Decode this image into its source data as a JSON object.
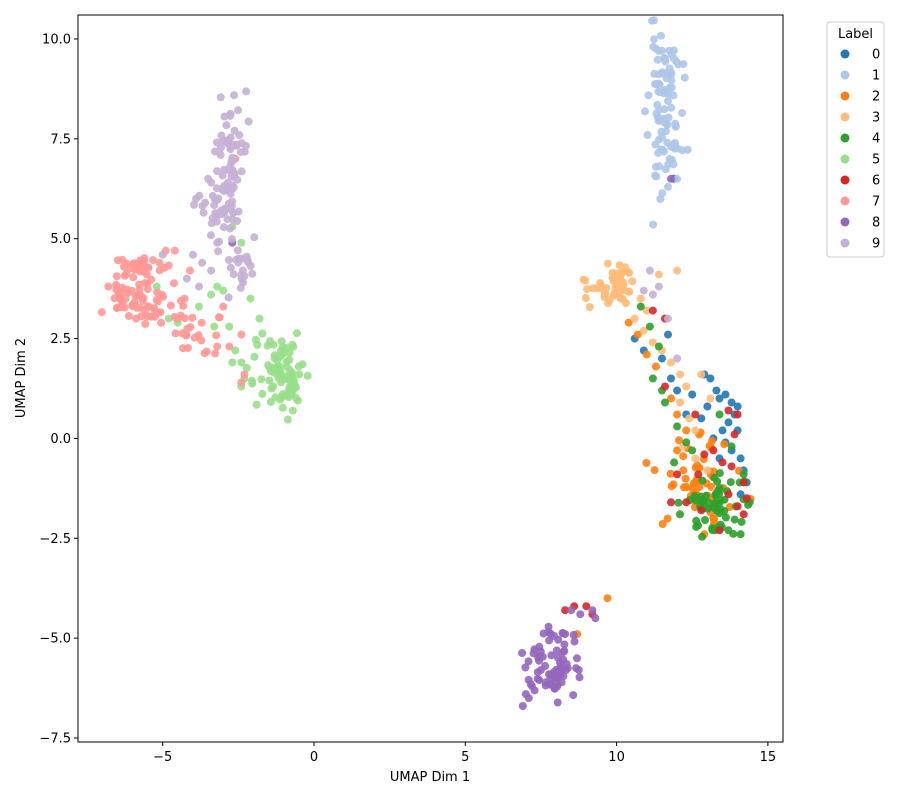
{
  "chart_data": {
    "type": "scatter",
    "title": "",
    "xlabel": "UMAP Dim 1",
    "ylabel": "UMAP Dim 2",
    "xlim": [
      -7.8,
      15.5
    ],
    "ylim": [
      -7.6,
      10.6
    ],
    "xticks": [
      -5,
      0,
      5,
      10,
      15
    ],
    "xtick_labels": [
      "−5",
      "0",
      "5",
      "10",
      "15"
    ],
    "yticks": [
      -7.5,
      -5.0,
      -2.5,
      0.0,
      2.5,
      5.0,
      7.5,
      10.0
    ],
    "ytick_labels": [
      "−7.5",
      "−5.0",
      "−2.5",
      "0.0",
      "2.5",
      "5.0",
      "7.5",
      "10.0"
    ],
    "grid": false,
    "legend": {
      "title": "Label",
      "placement": "upper-right-outside"
    },
    "series": [
      {
        "name": "0",
        "color": "#1f77b4",
        "clusters": [
          {
            "points": [
              [
                11.7,
                2.6
              ],
              [
                11.5,
                2.0
              ],
              [
                11.8,
                1.5
              ],
              [
                12.0,
                1.2
              ],
              [
                12.5,
                1.1
              ],
              [
                12.9,
                1.6
              ],
              [
                13.1,
                1.5
              ],
              [
                13.3,
                1.2
              ],
              [
                13.4,
                1.0
              ],
              [
                13.6,
                1.1
              ],
              [
                13.8,
                0.9
              ],
              [
                13.9,
                0.6
              ],
              [
                14.0,
                0.8
              ],
              [
                13.5,
                0.2
              ],
              [
                13.2,
                0.0
              ],
              [
                13.6,
                -0.1
              ],
              [
                13.8,
                -0.3
              ],
              [
                14.1,
                -0.5
              ],
              [
                14.2,
                -0.8
              ],
              [
                14.3,
                -1.1
              ],
              [
                14.1,
                -1.4
              ],
              [
                11.9,
                6.5
              ],
              [
                10.6,
                2.5
              ],
              [
                10.9,
                2.2
              ],
              [
                12.3,
                0.6
              ],
              [
                12.8,
                0.5
              ],
              [
                13.0,
                0.8
              ],
              [
                13.7,
                0.4
              ],
              [
                14.0,
                0.2
              ],
              [
                13.4,
                -0.5
              ]
            ]
          }
        ]
      },
      {
        "name": "1",
        "color": "#aec7e8",
        "clusters": [
          {
            "center": [
              11.6,
              8.2
            ],
            "spread": [
              0.28,
              1.0
            ],
            "count": 90,
            "seed": 11
          },
          {
            "points": [
              [
                11.4,
                9.7
              ],
              [
                11.6,
                9.5
              ],
              [
                11.7,
                6.3
              ],
              [
                11.3,
                6.8
              ],
              [
                12.0,
                6.5
              ]
            ]
          }
        ]
      },
      {
        "name": "2",
        "color": "#ff7f0e",
        "clusters": [
          {
            "center": [
              12.7,
              -1.0
            ],
            "spread": [
              0.55,
              0.55
            ],
            "count": 55,
            "seed": 22
          },
          {
            "points": [
              [
                10.4,
                2.9
              ],
              [
                10.7,
                2.6
              ],
              [
                11.0,
                2.1
              ],
              [
                11.3,
                1.8
              ],
              [
                11.8,
                1.0
              ],
              [
                12.0,
                0.6
              ],
              [
                12.3,
                0.2
              ],
              [
                12.0,
                -0.3
              ],
              [
                12.9,
                -2.4
              ],
              [
                13.2,
                -2.0
              ],
              [
                9.7,
                -4.0
              ],
              [
                8.7,
                -4.9
              ]
            ]
          }
        ]
      },
      {
        "name": "3",
        "color": "#ffbb78",
        "clusters": [
          {
            "center": [
              9.9,
              3.8
            ],
            "spread": [
              0.45,
              0.22
            ],
            "count": 50,
            "seed": 33
          },
          {
            "points": [
              [
                10.8,
                3.5
              ],
              [
                11.0,
                3.2
              ],
              [
                10.6,
                3.0
              ],
              [
                10.9,
                2.7
              ],
              [
                11.2,
                2.4
              ],
              [
                11.5,
                2.2
              ],
              [
                11.8,
                1.9
              ],
              [
                12.1,
                1.6
              ],
              [
                12.3,
                1.3
              ],
              [
                12.1,
                0.9
              ],
              [
                12.4,
                0.5
              ],
              [
                12.6,
                0.2
              ],
              [
                12.2,
                -0.2
              ],
              [
                12.6,
                -0.5
              ],
              [
                13.0,
                -0.8
              ],
              [
                13.3,
                -1.3
              ],
              [
                12.8,
                1.6
              ],
              [
                13.1,
                1.0
              ],
              [
                12.0,
                4.2
              ],
              [
                11.4,
                4.1
              ]
            ]
          }
        ]
      },
      {
        "name": "4",
        "color": "#2ca02c",
        "clusters": [
          {
            "center": [
              13.2,
              -1.7
            ],
            "spread": [
              0.6,
              0.45
            ],
            "count": 55,
            "seed": 44
          },
          {
            "points": [
              [
                10.8,
                3.3
              ],
              [
                11.1,
                2.8
              ],
              [
                11.4,
                2.3
              ],
              [
                11.2,
                1.5
              ],
              [
                11.5,
                1.2
              ],
              [
                11.6,
                0.9
              ],
              [
                12.0,
                0.3
              ],
              [
                12.3,
                -0.1
              ],
              [
                11.9,
                -0.6
              ],
              [
                12.5,
                -0.3
              ],
              [
                13.4,
                0.6
              ],
              [
                13.8,
                -0.2
              ],
              [
                14.2,
                -0.9
              ],
              [
                14.4,
                -1.6
              ],
              [
                14.1,
                -2.4
              ],
              [
                13.7,
                -2.3
              ]
            ]
          }
        ]
      },
      {
        "name": "5",
        "color": "#98df8a",
        "clusters": [
          {
            "center": [
              -1.3,
              1.8
            ],
            "spread": [
              0.45,
              0.4
            ],
            "count": 60,
            "seed": 55
          },
          {
            "center": [
              -0.9,
              1.1
            ],
            "spread": [
              0.2,
              0.3
            ],
            "count": 25,
            "seed": 56
          },
          {
            "points": [
              [
                -5.2,
                3.8
              ],
              [
                -4.8,
                3.0
              ],
              [
                -4.5,
                2.9
              ],
              [
                -3.8,
                3.3
              ],
              [
                -3.2,
                3.8
              ],
              [
                -3.3,
                2.8
              ],
              [
                -2.8,
                2.8
              ],
              [
                -2.6,
                2.2
              ],
              [
                -2.4,
                1.9
              ],
              [
                -2.3,
                1.5
              ],
              [
                -2.7,
                1.9
              ],
              [
                -2.1,
                3.5
              ],
              [
                -2.4,
                4.0
              ],
              [
                -1.8,
                3.0
              ],
              [
                -2.7,
                5.3
              ],
              [
                -2.4,
                4.9
              ],
              [
                -3.4,
                3.6
              ],
              [
                -3.0,
                3.7
              ]
            ]
          }
        ]
      },
      {
        "name": "6",
        "color": "#d62728",
        "clusters": [
          {
            "points": [
              [
                11.2,
                3.2
              ],
              [
                11.6,
                1.3
              ],
              [
                12.6,
                0.6
              ],
              [
                13.2,
                -0.3
              ],
              [
                13.5,
                -0.6
              ],
              [
                13.8,
                -0.7
              ],
              [
                13.9,
                0.1
              ],
              [
                14.0,
                0.6
              ],
              [
                13.7,
                0.7
              ],
              [
                14.2,
                -1.1
              ],
              [
                14.3,
                -1.5
              ],
              [
                14.0,
                -1.7
              ],
              [
                14.2,
                -1.9
              ],
              [
                13.7,
                -1.4
              ],
              [
                12.8,
                -1.8
              ],
              [
                12.3,
                -1.6
              ],
              [
                12.9,
                -0.4
              ],
              [
                11.8,
                -1.6
              ],
              [
                12.7,
                -0.9
              ],
              [
                12.0,
                -0.9
              ],
              [
                8.3,
                -4.3
              ],
              [
                9.0,
                -4.2
              ],
              [
                9.2,
                -4.4
              ],
              [
                8.6,
                -4.2
              ],
              [
                13.4,
                -2.3
              ],
              [
                11.6,
                3.0
              ]
            ]
          }
        ]
      },
      {
        "name": "7",
        "color": "#ff9896",
        "clusters": [
          {
            "center": [
              -6.1,
              3.7
            ],
            "spread": [
              0.35,
              0.3
            ],
            "count": 45,
            "seed": 77
          },
          {
            "center": [
              -5.6,
              4.3
            ],
            "spread": [
              0.4,
              0.12
            ],
            "count": 25,
            "seed": 78
          },
          {
            "center": [
              -5.2,
              3.2
            ],
            "spread": [
              0.45,
              0.3
            ],
            "count": 30,
            "seed": 79
          },
          {
            "center": [
              -4.0,
              2.6
            ],
            "spread": [
              0.5,
              0.3
            ],
            "count": 20,
            "seed": 80
          },
          {
            "points": [
              [
                -3.2,
                2.3
              ],
              [
                -2.8,
                2.3
              ],
              [
                -2.4,
                2.6
              ],
              [
                -2.3,
                1.6
              ],
              [
                -2.4,
                1.4
              ],
              [
                -4.9,
                4.7
              ],
              [
                -4.6,
                4.7
              ],
              [
                -4.1,
                4.2
              ],
              [
                -6.8,
                3.8
              ],
              [
                -3.0,
                3.3
              ],
              [
                -2.6,
                7.0
              ]
            ]
          }
        ]
      },
      {
        "name": "8",
        "color": "#9467bd",
        "clusters": [
          {
            "center": [
              7.9,
              -5.6
            ],
            "spread": [
              0.4,
              0.45
            ],
            "count": 70,
            "seed": 88
          },
          {
            "points": [
              [
                6.9,
                -6.7
              ],
              [
                7.1,
                -6.5
              ],
              [
                7.2,
                -6.2
              ],
              [
                8.5,
                -4.3
              ],
              [
                8.8,
                -4.4
              ],
              [
                9.2,
                -4.3
              ],
              [
                9.3,
                -4.5
              ],
              [
                -2.7,
                4.9
              ],
              [
                11.8,
                6.5
              ],
              [
                7.5,
                -5.8
              ],
              [
                8.3,
                -4.9
              ],
              [
                7.0,
                -6.4
              ]
            ]
          }
        ]
      },
      {
        "name": "9",
        "color": "#c5b0d5",
        "clusters": [
          {
            "center": [
              -2.7,
              6.8
            ],
            "spread": [
              0.3,
              0.8
            ],
            "count": 65,
            "seed": 99
          },
          {
            "center": [
              -3.0,
              5.7
            ],
            "spread": [
              0.4,
              0.35
            ],
            "count": 35,
            "seed": 100
          },
          {
            "center": [
              -2.4,
              4.2
            ],
            "spread": [
              0.2,
              0.3
            ],
            "count": 20,
            "seed": 101
          },
          {
            "points": [
              [
                -4.0,
                4.6
              ],
              [
                -3.7,
                4.4
              ],
              [
                -3.4,
                4.2
              ],
              [
                -3.8,
                3.8
              ],
              [
                -4.2,
                4.0
              ],
              [
                -3.2,
                4.9
              ],
              [
                -5.0,
                4.6
              ],
              [
                -3.6,
                5.9
              ],
              [
                -3.9,
                6.0
              ],
              [
                -3.5,
                6.5
              ],
              [
                11.1,
                4.2
              ],
              [
                10.9,
                3.7
              ],
              [
                11.7,
                3.0
              ],
              [
                11.2,
                3.6
              ],
              [
                11.4,
                3.8
              ],
              [
                12.0,
                2.0
              ]
            ]
          }
        ]
      }
    ]
  }
}
